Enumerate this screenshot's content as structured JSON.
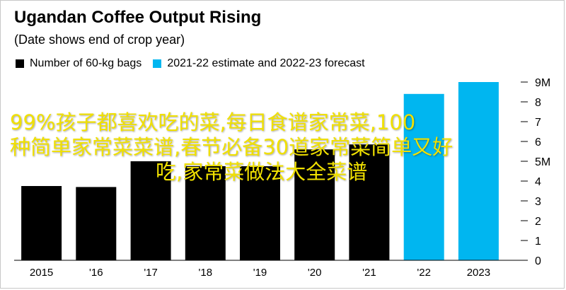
{
  "header": {
    "title": "Ugandan Coffee Output Rising",
    "subtitle": "(Date shows end of crop year)"
  },
  "legend": {
    "items": [
      {
        "label": "Number of 60-kg bags",
        "color": "#000000"
      },
      {
        "label": "2021-22 estimate and 2022-23 forecast",
        "color": "#00b6f0"
      }
    ]
  },
  "overlay": {
    "line1": "99%孩子都喜欢吃的菜,每日食谱家常菜,100",
    "line2": "种简单家常菜菜谱,春节必备30道家常菜简单又好",
    "line3": "吃,家常菜做法大全菜谱"
  },
  "chart_data": {
    "type": "bar",
    "title": "Ugandan Coffee Output Rising",
    "subtitle": "(Date shows end of crop year)",
    "categories": [
      "2015",
      "'16",
      "'17",
      "'18",
      "'19",
      "'20",
      "'21",
      "'22",
      "2023"
    ],
    "values": [
      3.75,
      3.7,
      5.0,
      4.75,
      4.75,
      5.6,
      5.85,
      8.4,
      9.0
    ],
    "colors": [
      "#000000",
      "#000000",
      "#000000",
      "#000000",
      "#000000",
      "#000000",
      "#000000",
      "#00b6f0",
      "#00b6f0"
    ],
    "y_ticks": [
      "0",
      "1",
      "2",
      "3",
      "4",
      "5M",
      "6",
      "7",
      "8",
      "9M"
    ],
    "ylim": [
      0,
      9.2
    ],
    "grid": false,
    "y_axis_side": "right"
  }
}
